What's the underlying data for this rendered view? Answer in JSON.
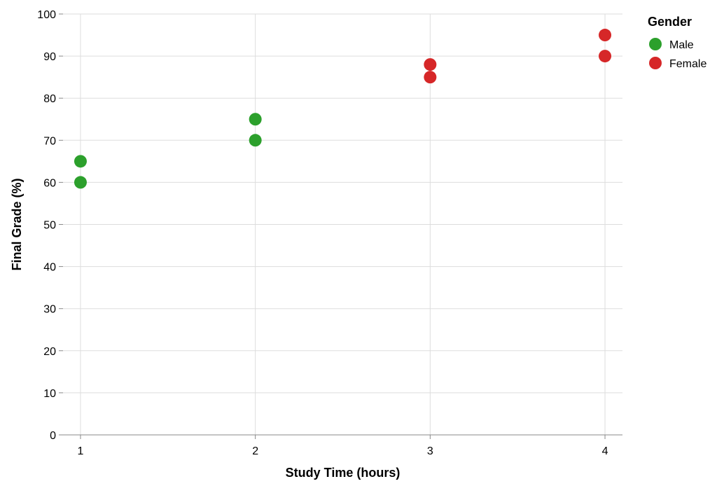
{
  "chart_data": {
    "type": "scatter",
    "xlabel": "Study Time (hours)",
    "ylabel": "Final Grade (%)",
    "x_ticks": [
      1,
      2,
      3,
      4
    ],
    "y_ticks": [
      0,
      10,
      20,
      30,
      40,
      50,
      60,
      70,
      80,
      90,
      100
    ],
    "xlim": [
      0.9,
      4.1
    ],
    "ylim": [
      0,
      100
    ],
    "grid": true,
    "legend": {
      "title": "Gender",
      "placement": "right",
      "entries": [
        {
          "label": "Male",
          "color": "#2ca02c"
        },
        {
          "label": "Female",
          "color": "#d62728"
        }
      ]
    },
    "series": [
      {
        "name": "Male",
        "color": "#2ca02c",
        "points": [
          {
            "x": 1,
            "y": 60
          },
          {
            "x": 1,
            "y": 65
          },
          {
            "x": 2,
            "y": 70
          },
          {
            "x": 2,
            "y": 75
          }
        ]
      },
      {
        "name": "Female",
        "color": "#d62728",
        "points": [
          {
            "x": 3,
            "y": 85
          },
          {
            "x": 3,
            "y": 88
          },
          {
            "x": 4,
            "y": 90
          },
          {
            "x": 4,
            "y": 95
          }
        ]
      }
    ]
  }
}
